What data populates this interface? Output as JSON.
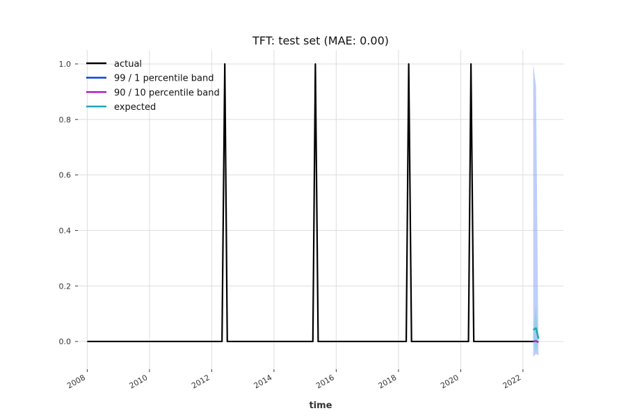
{
  "chart_data": {
    "type": "line",
    "title": "TFT: test set (MAE: 0.00)",
    "xlabel": "time",
    "ylabel": "",
    "xlim": [
      2007.7,
      2023.3
    ],
    "ylim": [
      -0.1,
      1.05
    ],
    "x_ticks": [
      2008,
      2010,
      2012,
      2014,
      2016,
      2018,
      2020,
      2022
    ],
    "x_tick_labels": [
      "2008",
      "2010",
      "2012",
      "2014",
      "2016",
      "2018",
      "2020",
      "2022"
    ],
    "y_ticks": [
      0.0,
      0.2,
      0.4,
      0.6,
      0.8,
      1.0
    ],
    "y_tick_labels": [
      "0.0",
      "0.2",
      "0.4",
      "0.6",
      "0.8",
      "1.0"
    ],
    "grid": true,
    "legend_position": "top-left",
    "series": [
      {
        "name": "actual",
        "color": "#000000",
        "x": [
          2008.0,
          2012.33,
          2012.42,
          2012.5,
          2015.25,
          2015.33,
          2015.42,
          2018.25,
          2018.33,
          2018.42,
          2020.25,
          2020.33,
          2020.42,
          2022.33
        ],
        "y": [
          0,
          0,
          1,
          0,
          0,
          1,
          0,
          0,
          1,
          0,
          0,
          1,
          0,
          0
        ]
      },
      {
        "name": "99 / 1 percentile band",
        "color": "#0a44e0",
        "fill": "#8aa6f5",
        "x": [
          2022.33,
          2022.42,
          2022.5
        ],
        "upper": [
          1.0,
          0.92,
          -0.05
        ],
        "lower": [
          -0.055,
          -0.045,
          -0.05
        ]
      },
      {
        "name": "90 / 10 percentile band",
        "color": "#b11cc4",
        "x": [
          2022.33,
          2022.42,
          2022.5
        ],
        "y": [
          0.0,
          0.002,
          -0.003
        ]
      },
      {
        "name": "expected",
        "color": "#1fa7b8",
        "fill": "#7fd0da",
        "x": [
          2022.33,
          2022.42,
          2022.5
        ],
        "y": [
          0.042,
          0.048,
          0.01
        ],
        "upper": [
          0.04,
          0.125,
          0.01
        ],
        "lower": [
          0.0,
          -0.04,
          0.0
        ]
      }
    ]
  }
}
